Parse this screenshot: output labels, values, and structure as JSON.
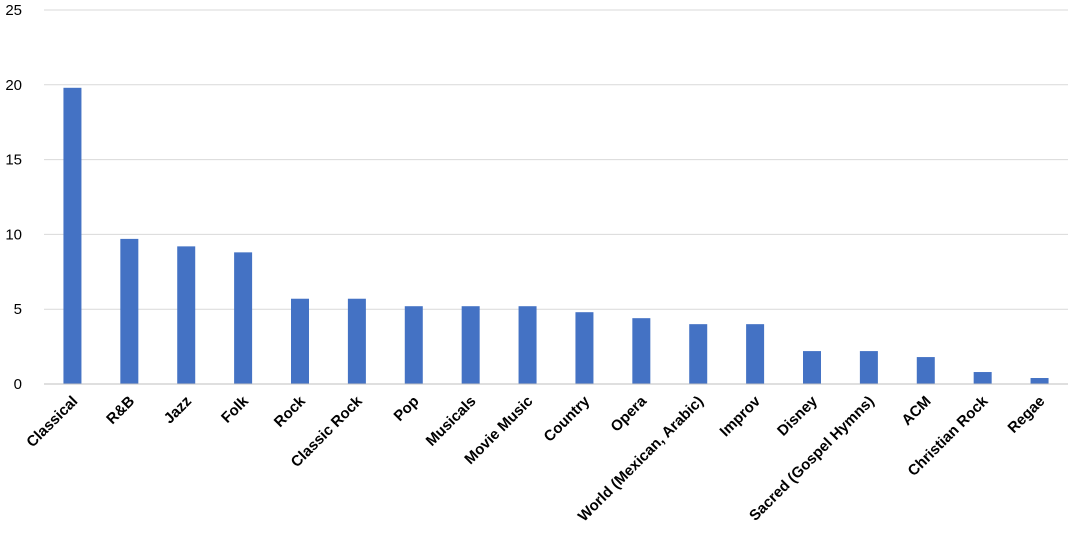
{
  "chart_data": {
    "type": "bar",
    "title": "",
    "xlabel": "",
    "ylabel": "",
    "ylim": [
      0,
      25
    ],
    "yticks": [
      0,
      5,
      10,
      15,
      20,
      25
    ],
    "grid": true,
    "categories": [
      "Classical",
      "R&B",
      "Jazz",
      "Folk",
      "Rock",
      "Classic Rock",
      "Pop",
      "Musicals",
      "Movie Music",
      "Country",
      "Opera",
      "World (Mexican, Arabic)",
      "Improv",
      "Disney",
      "Sacred (Gospel Hymns)",
      "ACM",
      "Christian Rock",
      "Regae"
    ],
    "values": [
      19.8,
      9.7,
      9.2,
      8.8,
      5.7,
      5.7,
      5.2,
      5.2,
      5.2,
      4.8,
      4.4,
      4.0,
      4.0,
      2.2,
      2.2,
      1.8,
      0.8,
      0.4
    ],
    "colors": {
      "bar": "#4472c4"
    }
  }
}
